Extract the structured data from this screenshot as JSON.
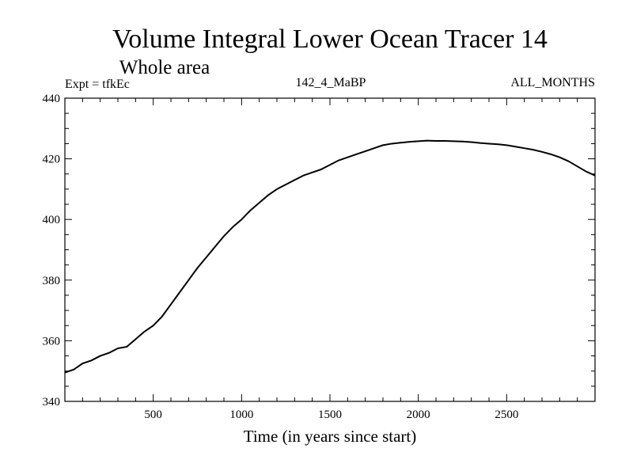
{
  "chart_data": {
    "type": "line",
    "title": "Volume Integral Lower Ocean Tracer 14",
    "subtitle": "Whole area",
    "annotations": {
      "left": "Expt = tfkEc",
      "center": "142_4_MaBP",
      "right": "ALL_MONTHS"
    },
    "xlabel": "Time (in years since start)",
    "ylabel": "",
    "xlim": [
      0,
      3000
    ],
    "ylim": [
      340,
      440
    ],
    "xticks": [
      500,
      1000,
      1500,
      2000,
      2500
    ],
    "xtick_labels": [
      "500",
      "1000",
      "1500",
      "2000",
      "2500"
    ],
    "yticks": [
      340,
      360,
      380,
      400,
      420,
      440
    ],
    "ytick_labels": [
      "340",
      "360",
      "380",
      "400",
      "420",
      "440"
    ],
    "grid": false,
    "line_color": "#000000",
    "series": [
      {
        "x": [
          0,
          50,
          100,
          150,
          200,
          250,
          300,
          350,
          400,
          450,
          500,
          550,
          600,
          650,
          700,
          750,
          800,
          850,
          900,
          950,
          1000,
          1050,
          1100,
          1150,
          1200,
          1250,
          1300,
          1350,
          1400,
          1450,
          1500,
          1550,
          1600,
          1650,
          1700,
          1750,
          1800,
          1850,
          1900,
          1950,
          2000,
          2050,
          2100,
          2150,
          2200,
          2250,
          2300,
          2350,
          2400,
          2450,
          2500,
          2550,
          2600,
          2650,
          2700,
          2750,
          2800,
          2850,
          2900,
          2950,
          3000
        ],
        "values": [
          349.5,
          350.5,
          352.5,
          353.5,
          355,
          356,
          357.5,
          358,
          360.5,
          363,
          365,
          368,
          372,
          376,
          380,
          384,
          387.5,
          391,
          394.5,
          397.5,
          400,
          403,
          405.5,
          408,
          410,
          411.5,
          413,
          414.5,
          415.5,
          416.5,
          418,
          419.5,
          420.5,
          421.5,
          422.5,
          423.5,
          424.5,
          425,
          425.3,
          425.6,
          425.8,
          426,
          425.9,
          425.9,
          425.8,
          425.7,
          425.5,
          425.2,
          425,
          424.8,
          424.5,
          424,
          423.5,
          423,
          422.3,
          421.5,
          420.5,
          419.2,
          417.5,
          415.8,
          414.5
        ]
      }
    ]
  }
}
